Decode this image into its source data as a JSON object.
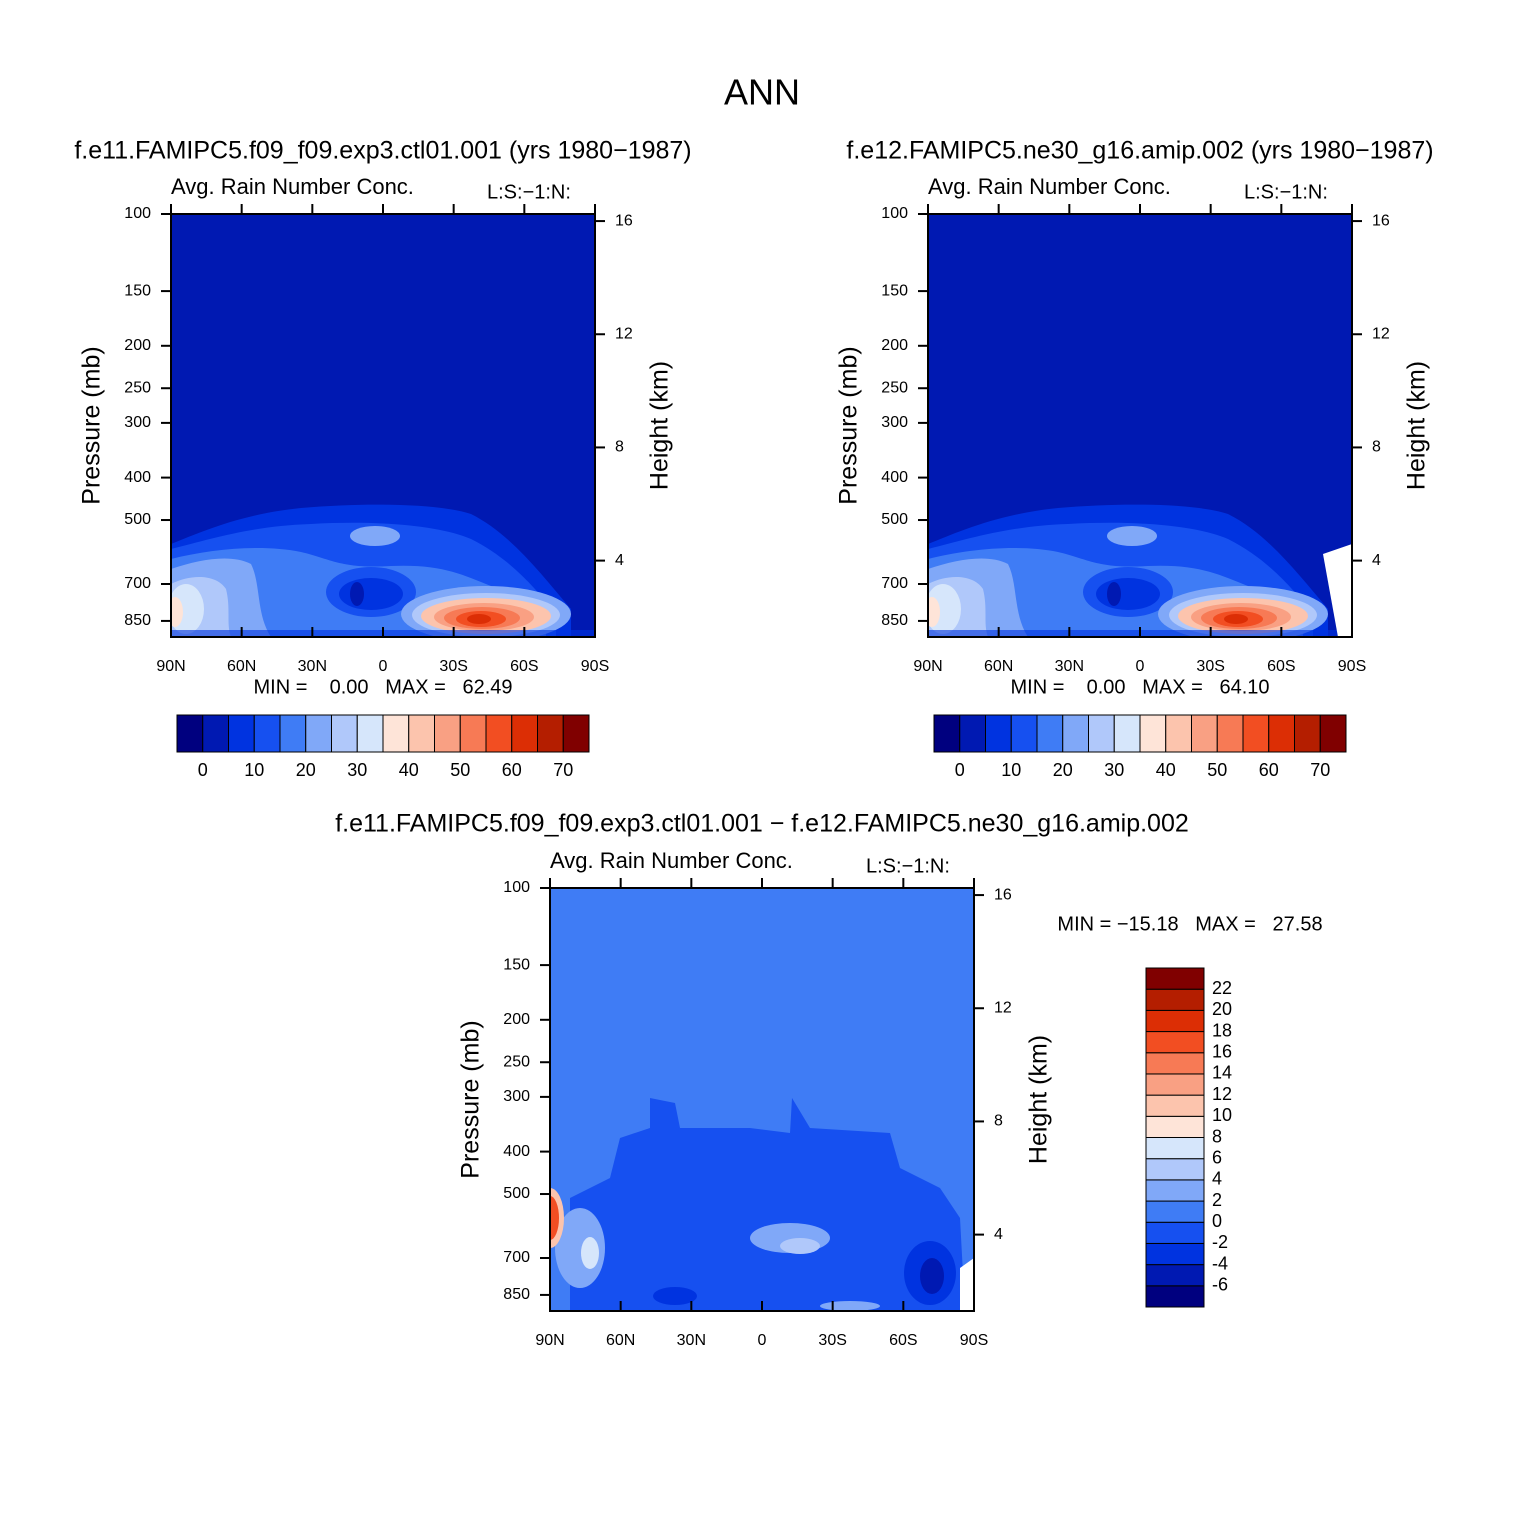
{
  "suptitle": "ANN",
  "chart_data": [
    {
      "type": "contour",
      "title": "f.e11.FAMIPC5.f09_f09.exp3.ctl01.001 (yrs 1980−1987)",
      "subtitle": "Avg. Rain Number Conc.",
      "units": "L:S:−1:N:",
      "ylabel": "Pressure (mb)",
      "y2label": "Height (km)",
      "yscale": "log",
      "xlim": [
        90,
        -90
      ],
      "xticks": [
        {
          "value": 90,
          "label": "90N"
        },
        {
          "value": 60,
          "label": "60N"
        },
        {
          "value": 30,
          "label": "30N"
        },
        0,
        {
          "value": -30,
          "label": "30S"
        },
        {
          "value": -60,
          "label": "60S"
        },
        {
          "value": -90,
          "label": "90S"
        }
      ],
      "ylim": [
        100,
        925
      ],
      "yticks": [
        100,
        150,
        200,
        250,
        300,
        400,
        500,
        700,
        850
      ],
      "y2lim": [
        1.3,
        16.25
      ],
      "y2ticks": [
        4,
        8,
        12,
        16
      ],
      "stats": "MIN =    0.00   MAX =   62.49",
      "colorbar": {
        "orientation": "horizontal",
        "levels": [
          0,
          5,
          10,
          15,
          20,
          25,
          30,
          35,
          40,
          45,
          50,
          55,
          60,
          65,
          70
        ],
        "ticks": [
          0,
          10,
          20,
          30,
          40,
          50,
          60,
          70
        ],
        "colors": [
          "#00007f",
          "#0019b2",
          "#0033e0",
          "#1650f0",
          "#3f7cf5",
          "#80a8f8",
          "#b0c8fa",
          "#d6e6fb",
          "#fee4d8",
          "#fcc4ad",
          "#f9a083",
          "#f77a55",
          "#f24e22",
          "#dc2e05",
          "#b41e00",
          "#800000"
        ]
      }
    },
    {
      "type": "contour",
      "title": "f.e12.FAMIPC5.ne30_g16.amip.002 (yrs 1980−1987)",
      "subtitle": "Avg. Rain Number Conc.",
      "units": "L:S:−1:N:",
      "ylabel": "Pressure (mb)",
      "y2label": "Height (km)",
      "yscale": "log",
      "xlim": [
        90,
        -90
      ],
      "xticks": [
        {
          "value": 90,
          "label": "90N"
        },
        {
          "value": 60,
          "label": "60N"
        },
        {
          "value": 30,
          "label": "30N"
        },
        0,
        {
          "value": -30,
          "label": "30S"
        },
        {
          "value": -60,
          "label": "60S"
        },
        {
          "value": -90,
          "label": "90S"
        }
      ],
      "ylim": [
        100,
        925
      ],
      "yticks": [
        100,
        150,
        200,
        250,
        300,
        400,
        500,
        700,
        850
      ],
      "y2lim": [
        1.3,
        16.25
      ],
      "y2ticks": [
        4,
        8,
        12,
        16
      ],
      "stats": "MIN =    0.00   MAX =   64.10",
      "colorbar": {
        "orientation": "horizontal",
        "levels": [
          0,
          5,
          10,
          15,
          20,
          25,
          30,
          35,
          40,
          45,
          50,
          55,
          60,
          65,
          70
        ],
        "ticks": [
          0,
          10,
          20,
          30,
          40,
          50,
          60,
          70
        ],
        "colors": [
          "#00007f",
          "#0019b2",
          "#0033e0",
          "#1650f0",
          "#3f7cf5",
          "#80a8f8",
          "#b0c8fa",
          "#d6e6fb",
          "#fee4d8",
          "#fcc4ad",
          "#f9a083",
          "#f77a55",
          "#f24e22",
          "#dc2e05",
          "#b41e00",
          "#800000"
        ]
      }
    },
    {
      "type": "contour",
      "title": "f.e11.FAMIPC5.f09_f09.exp3.ctl01.001 − f.e12.FAMIPC5.ne30_g16.amip.002",
      "subtitle": "Avg. Rain Number Conc.",
      "units": "L:S:−1:N:",
      "ylabel": "Pressure (mb)",
      "y2label": "Height (km)",
      "yscale": "log",
      "xlim": [
        90,
        -90
      ],
      "xticks": [
        {
          "value": 90,
          "label": "90N"
        },
        {
          "value": 60,
          "label": "60N"
        },
        {
          "value": 30,
          "label": "30N"
        },
        0,
        {
          "value": -30,
          "label": "30S"
        },
        {
          "value": -60,
          "label": "60S"
        },
        {
          "value": -90,
          "label": "90S"
        }
      ],
      "ylim": [
        100,
        925
      ],
      "yticks": [
        100,
        150,
        200,
        250,
        300,
        400,
        500,
        700,
        850
      ],
      "y2lim": [
        1.3,
        16.25
      ],
      "y2ticks": [
        4,
        8,
        12,
        16
      ],
      "stats": "MIN = −15.18   MAX =   27.58",
      "colorbar": {
        "orientation": "vertical",
        "levels": [
          -6,
          -4,
          -2,
          0,
          2,
          4,
          6,
          8,
          10,
          12,
          14,
          16,
          18,
          20,
          22
        ],
        "ticks": [
          -6,
          -4,
          -2,
          0,
          2,
          4,
          6,
          8,
          10,
          12,
          14,
          16,
          18,
          20,
          22
        ],
        "colors": [
          "#00007f",
          "#0019b2",
          "#0033e0",
          "#1650f0",
          "#3f7cf5",
          "#80a8f8",
          "#b0c8fa",
          "#d6e6fb",
          "#fee4d8",
          "#fcc4ad",
          "#f9a083",
          "#f77a55",
          "#f24e22",
          "#dc2e05",
          "#b41e00",
          "#800000"
        ]
      }
    }
  ]
}
